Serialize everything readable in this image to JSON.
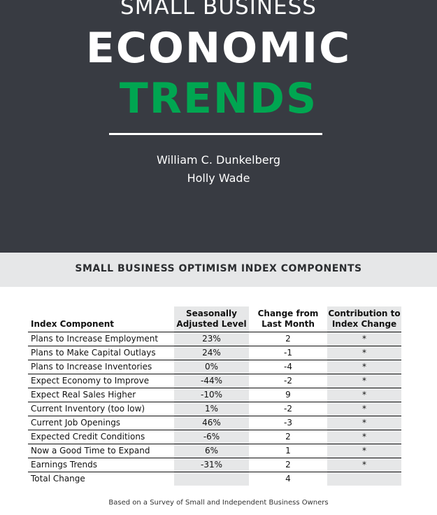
{
  "hero": {
    "kicker": "SMALL BUSINESS",
    "title_line1": "ECONOMIC",
    "title_line2": "TRENDS",
    "authors": [
      "William C. Dunkelberg",
      "Holly Wade"
    ]
  },
  "section_title": "SMALL BUSINESS OPTIMISM INDEX COMPONENTS",
  "table": {
    "headers": {
      "component": "Index Component",
      "seasonal_line1": "Seasonally",
      "seasonal_line2": "Adjusted Level",
      "change_line1": "Change from",
      "change_line2": "Last Month",
      "contribution_line1": "Contribution to",
      "contribution_line2": "Index Change"
    },
    "rows": [
      {
        "component": "Plans to Increase Employment",
        "level": "23%",
        "change": "2",
        "contribution": "*"
      },
      {
        "component": "Plans to Make Capital Outlays",
        "level": "24%",
        "change": "-1",
        "contribution": "*"
      },
      {
        "component": "Plans to Increase Inventories",
        "level": "0%",
        "change": "-4",
        "contribution": "*"
      },
      {
        "component": "Expect Economy to Improve",
        "level": "-44%",
        "change": "-2",
        "contribution": "*"
      },
      {
        "component": "Expect Real Sales Higher",
        "level": "-10%",
        "change": "9",
        "contribution": "*"
      },
      {
        "component": "Current Inventory (too low)",
        "level": "1%",
        "change": "-2",
        "contribution": "*"
      },
      {
        "component": "Current Job Openings",
        "level": "46%",
        "change": "-3",
        "contribution": "*"
      },
      {
        "component": "Expected Credit Conditions",
        "level": "-6%",
        "change": "2",
        "contribution": "*"
      },
      {
        "component": "Now a Good Time to Expand",
        "level": "6%",
        "change": "1",
        "contribution": "*"
      },
      {
        "component": "Earnings Trends",
        "level": "-31%",
        "change": "2",
        "contribution": "*"
      },
      {
        "component": "Total Change",
        "level": "",
        "change": "4",
        "contribution": ""
      }
    ]
  },
  "footnote": "Based on a Survey of Small and Independent Business Owners"
}
